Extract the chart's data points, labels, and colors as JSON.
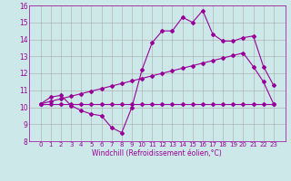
{
  "background_color": "#cce8e8",
  "grid_color": "#aaaaaa",
  "line_color": "#990099",
  "x_ticks": [
    0,
    1,
    2,
    3,
    4,
    5,
    6,
    7,
    8,
    9,
    10,
    11,
    12,
    13,
    14,
    15,
    16,
    17,
    18,
    19,
    20,
    21,
    22,
    23
  ],
  "ylim": [
    8,
    16
  ],
  "yticks": [
    8,
    9,
    10,
    11,
    12,
    13,
    14,
    15,
    16
  ],
  "xlabel": "Windchill (Refroidissement éolien,°C)",
  "line1_x": [
    0,
    1,
    2,
    3,
    4,
    5,
    6,
    7,
    8,
    9,
    10,
    11,
    12,
    13,
    14,
    15,
    16,
    17,
    18,
    19,
    20,
    21,
    22,
    23
  ],
  "line1_y": [
    10.2,
    10.6,
    10.7,
    10.1,
    9.8,
    9.6,
    9.5,
    8.8,
    8.5,
    10.0,
    12.2,
    13.8,
    14.5,
    14.5,
    15.3,
    15.0,
    15.7,
    14.3,
    13.9,
    13.9,
    14.1,
    14.2,
    12.4,
    11.3
  ],
  "line2_x": [
    0,
    1,
    2,
    3,
    4,
    5,
    6,
    7,
    8,
    9,
    10,
    11,
    12,
    13,
    14,
    15,
    16,
    17,
    18,
    19,
    20,
    21,
    22,
    23
  ],
  "line2_y": [
    10.2,
    10.2,
    10.2,
    10.2,
    10.2,
    10.2,
    10.2,
    10.2,
    10.2,
    10.2,
    10.2,
    10.2,
    10.2,
    10.2,
    10.2,
    10.2,
    10.2,
    10.2,
    10.2,
    10.2,
    10.2,
    10.2,
    10.2,
    10.2
  ],
  "line3_x": [
    0,
    1,
    2,
    3,
    4,
    5,
    6,
    7,
    8,
    9,
    10,
    11,
    12,
    13,
    14,
    15,
    16,
    17,
    18,
    19,
    20,
    21,
    22,
    23
  ],
  "line3_y": [
    10.2,
    10.35,
    10.5,
    10.65,
    10.8,
    10.95,
    11.1,
    11.25,
    11.4,
    11.55,
    11.7,
    11.85,
    12.0,
    12.15,
    12.3,
    12.45,
    12.6,
    12.75,
    12.9,
    13.05,
    13.2,
    12.4,
    11.5,
    10.2
  ],
  "marker_size": 2.0,
  "line_width": 0.8,
  "tick_fontsize": 5.0,
  "xlabel_fontsize": 5.5
}
